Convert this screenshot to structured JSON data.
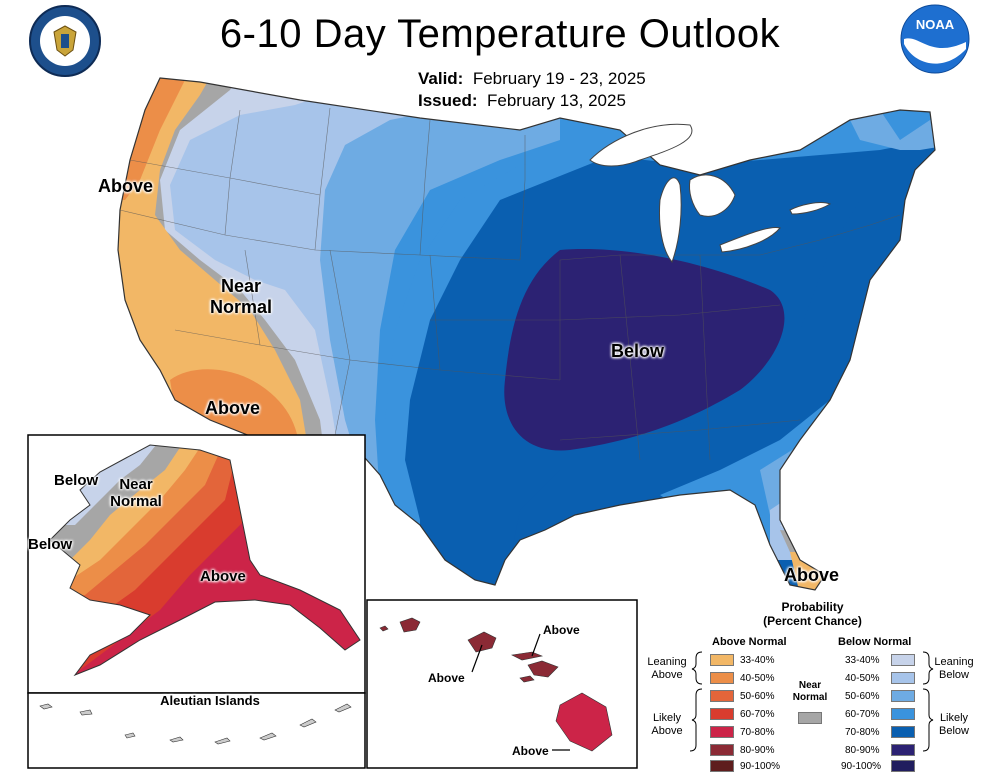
{
  "title": "6-10 Day Temperature Outlook",
  "valid_label": "Valid:",
  "valid_value": "February 19 - 23, 2025",
  "issued_label": "Issued:",
  "issued_value": "February 13, 2025",
  "logos": {
    "left": "commerce-seal-icon",
    "right": "noaa-logo-icon"
  },
  "map_labels": {
    "conus_above_nw": "Above",
    "conus_near_normal": "Near Normal",
    "conus_above_sw": "Above",
    "conus_below": "Below",
    "conus_above_fl": "Above",
    "ak_below_n": "Below",
    "ak_near_normal": "Near Normal",
    "ak_below_w": "Below",
    "ak_above": "Above",
    "aleutian_title": "Aleutian Islands",
    "hi_above_1": "Above",
    "hi_above_2": "Above",
    "hi_above_3": "Above"
  },
  "colors": {
    "above_33_40": "#f2b766",
    "above_40_50": "#ec8e48",
    "above_50_60": "#e3653a",
    "above_60_70": "#d93c2e",
    "above_70_80": "#cc2448",
    "above_80_90": "#8b2a35",
    "above_90_100": "#5e1d1d",
    "near_normal": "#a6a6a6",
    "below_33_40": "#c7d3ea",
    "below_40_50": "#a7c4ea",
    "below_50_60": "#6eabe3",
    "below_60_70": "#3a93dd",
    "below_70_80": "#0a5fb0",
    "below_80_90": "#2c2273",
    "below_90_100": "#201d5e"
  },
  "legend": {
    "title_line1": "Probability",
    "title_line2": "(Percent Chance)",
    "above_header": "Above Normal",
    "below_header": "Below Normal",
    "near_header": "Near Normal",
    "leaning_above": "Leaning Above",
    "likely_above": "Likely Above",
    "leaning_below": "Leaning Below",
    "likely_below": "Likely Below",
    "ranges": [
      "33-40%",
      "40-50%",
      "50-60%",
      "60-70%",
      "70-80%",
      "80-90%",
      "90-100%"
    ]
  }
}
